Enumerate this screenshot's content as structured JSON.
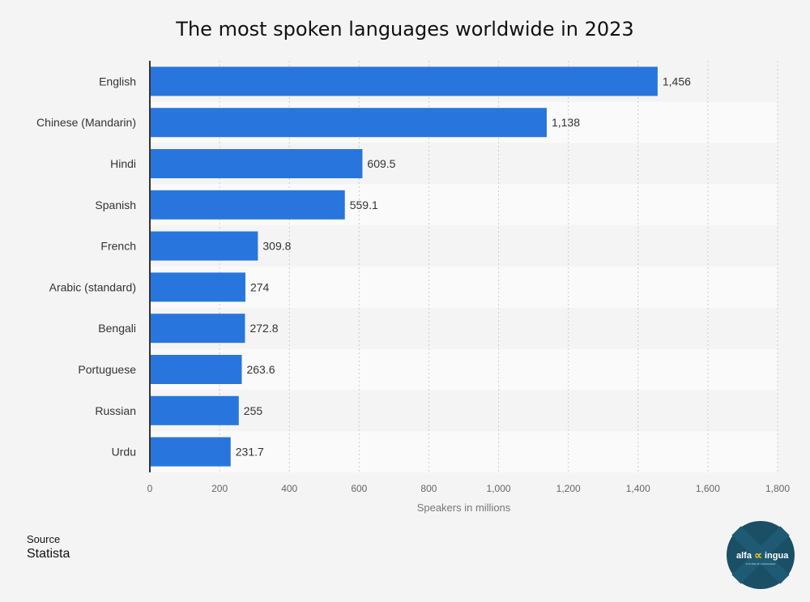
{
  "chart_data": {
    "type": "bar",
    "orientation": "horizontal",
    "title": "The most spoken languages worldwide in 2023",
    "xlabel": "Speakers in millions",
    "ylabel": "",
    "categories": [
      "English",
      "Chinese (Mandarin)",
      "Hindi",
      "Spanish",
      "French",
      "Arabic (standard)",
      "Bengali",
      "Portuguese",
      "Russian",
      "Urdu"
    ],
    "values": [
      1456,
      1138,
      609.5,
      559.1,
      309.8,
      274,
      272.8,
      263.6,
      255,
      231.7
    ],
    "value_labels": [
      "1,456",
      "1,138",
      "609.5",
      "559.1",
      "309.8",
      "274",
      "272.8",
      "263.6",
      "255",
      "231.7"
    ],
    "xlim": [
      0,
      1800
    ],
    "xticks": [
      0,
      200,
      400,
      600,
      800,
      1000,
      1200,
      1400,
      1600,
      1800
    ],
    "xtick_labels": [
      "0",
      "200",
      "400",
      "600",
      "800",
      "1,000",
      "1,200",
      "1,400",
      "1,600",
      "1,800"
    ],
    "grid": true,
    "bar_color": "#2876dd"
  },
  "source": {
    "label": "Source",
    "value": "Statista"
  },
  "logo": {
    "text": "alfa lingua",
    "tagline": "FUTURE OF LANGUAGES",
    "background": "#1a4f66",
    "accent": "#f2c21b"
  }
}
